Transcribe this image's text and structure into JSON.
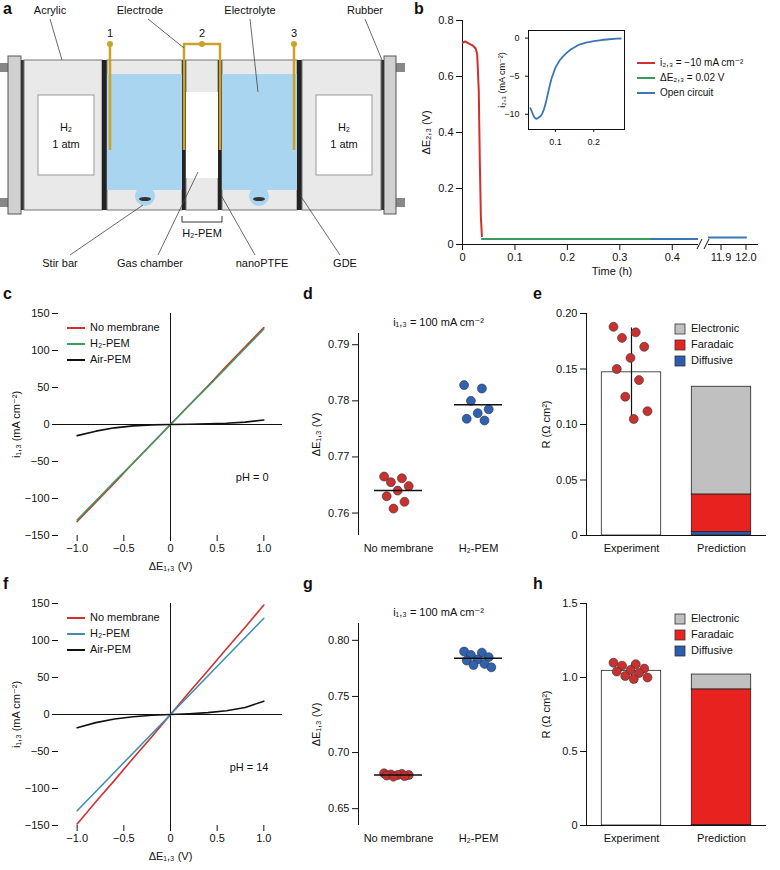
{
  "diagram": {
    "label": "a",
    "top_labels": [
      "Acrylic",
      "Electrode",
      "Electrolyte",
      "Rubber"
    ],
    "electrodes": [
      "1",
      "2",
      "3"
    ],
    "gas_compartments": [
      {
        "gas": "H₂",
        "pressure": "1 atm"
      },
      {
        "gas": "H₂",
        "pressure": "1 atm"
      }
    ],
    "bracket_label": "H₂-PEM",
    "bottom_labels": [
      "Stir bar",
      "Gas chamber",
      "nanoPTFE",
      "GDE"
    ]
  },
  "chart_data": [
    {
      "label": "b",
      "type": "line",
      "xlabel": "Time (h)",
      "ylabel": "ΔE₂,₃ (V)",
      "xlim": [
        0,
        12.05
      ],
      "x_break": [
        0.45,
        11.85
      ],
      "xticks": [
        0,
        0.1,
        0.2,
        0.3,
        0.4,
        11.9,
        {
          "value": 12,
          "label": "12.0"
        }
      ],
      "ylim": [
        0,
        0.8
      ],
      "yticks": [
        0,
        0.2,
        0.4,
        0.6,
        0.8
      ],
      "legend": "top-right",
      "series": [
        {
          "name": "i₂,₃ = −10 mA cm⁻²",
          "color": "#d0312d",
          "x": [
            0,
            0.005,
            0.01,
            0.015,
            0.02,
            0.025,
            0.028,
            0.031,
            0.033,
            0.035,
            0.037
          ],
          "values": [
            0.72,
            0.725,
            0.72,
            0.715,
            0.71,
            0.7,
            0.68,
            0.55,
            0.3,
            0.1,
            0.03
          ]
        },
        {
          "name": "ΔE₂,₃ = 0.02 V",
          "color": "#3c9a5f",
          "x": [
            0.037,
            0.36
          ],
          "values": [
            0.02,
            0.02
          ]
        },
        {
          "name": "Open circuit",
          "color": "#3b77b5",
          "x": [
            0.36,
            11.9,
            12.0
          ],
          "values": [
            0.02,
            0.025,
            0.025
          ]
        }
      ],
      "inset": {
        "type": "line",
        "ylabel": "i₂,₃ (mA cm⁻²)",
        "xlim": [
          0.03,
          0.28
        ],
        "xticks": [
          0.1,
          0.2
        ],
        "ylim": [
          -12,
          1
        ],
        "yticks": [
          0,
          {
            "value": -5,
            "label": "−5"
          },
          {
            "value": -10,
            "label": "−10"
          }
        ],
        "series": [
          {
            "color": "#3b77b5",
            "x": [
              0.035,
              0.04,
              0.045,
              0.05,
              0.055,
              0.06,
              0.065,
              0.07,
              0.075,
              0.08,
              0.085,
              0.09,
              0.1,
              0.11,
              0.12,
              0.13,
              0.14,
              0.15,
              0.16,
              0.18,
              0.2,
              0.22,
              0.24,
              0.26,
              0.27
            ],
            "values": [
              -9.2,
              -9.8,
              -10.4,
              -10.6,
              -10.5,
              -10.3,
              -10.0,
              -9.4,
              -8.5,
              -7.4,
              -6.3,
              -5.3,
              -3.9,
              -3.0,
              -2.4,
              -1.9,
              -1.5,
              -1.2,
              -0.9,
              -0.6,
              -0.4,
              -0.25,
              -0.15,
              -0.08,
              -0.05
            ]
          }
        ]
      }
    },
    {
      "label": "c",
      "type": "line",
      "xlabel": "ΔE₁,₃ (V)",
      "ylabel": "i₁,₃ (mA cm⁻²)",
      "annotation": "pH = 0",
      "xlim": [
        -1.2,
        1.2
      ],
      "xticks": [
        {
          "value": -1,
          "label": "−1.0"
        },
        {
          "value": -0.5,
          "label": "−0.5"
        },
        0,
        0.5,
        {
          "value": 1,
          "label": "1.0"
        }
      ],
      "ylim": [
        -150,
        150
      ],
      "yticks": [
        {
          "value": -150,
          "label": "−150"
        },
        {
          "value": -100,
          "label": "−100"
        },
        {
          "value": -50,
          "label": "−50"
        },
        0,
        50,
        100,
        150
      ],
      "legend": "top-left",
      "x": [
        -1,
        -0.8,
        -0.6,
        -0.4,
        -0.2,
        0,
        0.2,
        0.4,
        0.6,
        0.8,
        1
      ],
      "series": [
        {
          "name": "No membrane",
          "color": "#d0312d",
          "values": [
            -131,
            -105,
            -79,
            -52,
            -26,
            0,
            26,
            52,
            79,
            105,
            131
          ]
        },
        {
          "name": "H₂-PEM",
          "color": "#3c9a5f",
          "values": [
            -129,
            -103,
            -77,
            -52,
            -26,
            0,
            26,
            51,
            77,
            103,
            129
          ]
        },
        {
          "name": "Air-PEM",
          "color": "#111111",
          "values": [
            -15,
            -9,
            -4.5,
            -1.8,
            -0.5,
            0,
            0.3,
            0.8,
            1.6,
            3.2,
            6
          ]
        }
      ]
    },
    {
      "label": "d",
      "type": "scatter",
      "title": "i₁,₃ = 100 mA cm⁻²",
      "ylabel": "ΔE₁,₃ (V)",
      "categories": [
        "No membrane",
        "H₂-PEM"
      ],
      "colors": [
        "#c8312f",
        "#2f62b0"
      ],
      "points": [
        [
          0.7665,
          0.7662,
          0.7655,
          0.7648,
          0.764,
          0.763,
          0.762,
          0.7608
        ],
        [
          0.7828,
          0.7822,
          0.78,
          0.7785,
          0.7778,
          0.7768,
          0.7765
        ]
      ],
      "means": [
        0.764,
        0.7793
      ],
      "ylim": [
        0.756,
        0.792
      ],
      "yticks": [
        0.76,
        0.77,
        0.78,
        0.79
      ]
    },
    {
      "label": "e",
      "type": "bar",
      "ylabel": "R (Ω cm²)",
      "categories": [
        "Experiment",
        "Prediction"
      ],
      "values": [
        0.147,
        null
      ],
      "color": "#ffffff",
      "errors": [
        0.04,
        null
      ],
      "points": [
        [
          0.188,
          0.183,
          0.178,
          0.17,
          0.16,
          0.15,
          0.14,
          0.125,
          0.112,
          0.105
        ],
        []
      ],
      "stacked": true,
      "legend": "top-right",
      "series": [
        {
          "name": "Diffusive",
          "color": "#2a5db0",
          "values": [
            null,
            0.003
          ]
        },
        {
          "name": "Faradaic",
          "color": "#e8231f",
          "values": [
            null,
            0.034
          ]
        },
        {
          "name": "Electronic",
          "color": "#c0c0c0",
          "values": [
            null,
            0.097
          ]
        }
      ],
      "ylim": [
        0,
        0.2
      ],
      "yticks": [
        0,
        0.05,
        {
          "value": 0.1,
          "label": "0.10"
        },
        0.15,
        {
          "value": 0.2,
          "label": "0.20"
        }
      ]
    },
    {
      "label": "f",
      "type": "line",
      "xlabel": "ΔE₁,₃ (V)",
      "ylabel": "i₁,₃ (mA cm⁻²)",
      "annotation": "pH = 14",
      "xlim": [
        -1.2,
        1.2
      ],
      "xticks": [
        {
          "value": -1,
          "label": "−1.0"
        },
        {
          "value": -0.5,
          "label": "−0.5"
        },
        0,
        0.5,
        {
          "value": 1,
          "label": "1.0"
        }
      ],
      "ylim": [
        -150,
        150
      ],
      "yticks": [
        {
          "value": -150,
          "label": "−150"
        },
        {
          "value": -100,
          "label": "−100"
        },
        {
          "value": -50,
          "label": "−50"
        },
        0,
        50,
        100,
        150
      ],
      "legend": "top-left",
      "x": [
        -1,
        -0.8,
        -0.6,
        -0.4,
        -0.2,
        0,
        0.2,
        0.4,
        0.6,
        0.8,
        1
      ],
      "series": [
        {
          "name": "No membrane",
          "color": "#d0312d",
          "values": [
            -148,
            -118,
            -89,
            -59,
            -30,
            0,
            30,
            59,
            89,
            118,
            148
          ]
        },
        {
          "name": "H₂-PEM",
          "color": "#3d8fb5",
          "values": [
            -130,
            -104,
            -78,
            -52,
            -26,
            0,
            26,
            52,
            78,
            104,
            130
          ]
        },
        {
          "name": "Air-PEM",
          "color": "#111111",
          "values": [
            -18,
            -11,
            -6,
            -3,
            -1,
            0,
            1,
            2.5,
            5,
            9.5,
            18
          ]
        }
      ]
    },
    {
      "label": "g",
      "type": "scatter",
      "title": "i₁,₃ = 100 mA cm⁻²",
      "ylabel": "ΔE₁,₃ (V)",
      "categories": [
        "No membrane",
        "H₂-PEM"
      ],
      "colors": [
        "#c8312f",
        "#2f62b0"
      ],
      "points": [
        [
          0.6815,
          0.681,
          0.6805,
          0.68,
          0.68,
          0.6795,
          0.679,
          0.6785
        ],
        [
          0.79,
          0.789,
          0.787,
          0.785,
          0.783,
          0.782,
          0.779,
          0.778,
          0.776
        ]
      ],
      "means": [
        0.68,
        0.784
      ],
      "ylim": [
        0.635,
        0.815
      ],
      "yticks": [
        0.65,
        {
          "value": 0.7,
          "label": "0.70"
        },
        0.75,
        {
          "value": 0.8,
          "label": "0.80"
        }
      ]
    },
    {
      "label": "h",
      "type": "bar",
      "ylabel": "R (Ω cm²)",
      "categories": [
        "Experiment",
        "Prediction"
      ],
      "values": [
        1.045,
        null
      ],
      "color": "#ffffff",
      "errors": [
        0.045,
        null
      ],
      "points": [
        [
          1.1,
          1.09,
          1.08,
          1.06,
          1.05,
          1.04,
          1.03,
          1.01,
          1.0,
          0.99
        ],
        []
      ],
      "stacked": true,
      "legend": "top-right",
      "series": [
        {
          "name": "Diffusive",
          "color": "#2a5db0",
          "values": [
            null,
            0.003
          ]
        },
        {
          "name": "Faradaic",
          "color": "#e8231f",
          "values": [
            null,
            0.917
          ]
        },
        {
          "name": "Electronic",
          "color": "#c0c0c0",
          "values": [
            null,
            0.1
          ]
        }
      ],
      "ylim": [
        0,
        1.5
      ],
      "yticks": [
        0,
        0.5,
        {
          "value": 1,
          "label": "1.0"
        },
        1.5
      ]
    }
  ]
}
